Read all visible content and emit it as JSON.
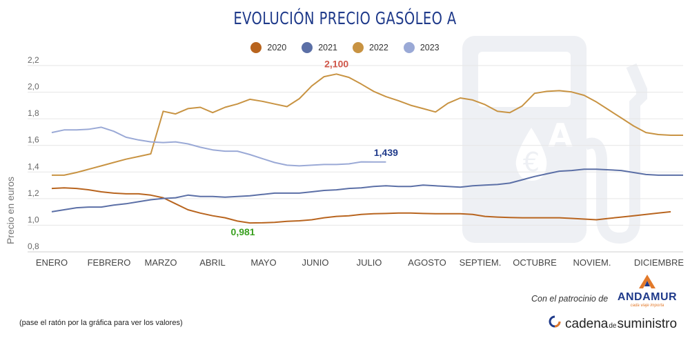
{
  "title": "EVOLUCIÓN PRECIO GASÓLEO A",
  "chart_data": {
    "type": "line",
    "title": "EVOLUCIÓN PRECIO GASÓLEO A",
    "xlabel": "",
    "ylabel": "Precio en euros",
    "ylim": [
      0.8,
      2.2
    ],
    "y_ticks": [
      "0,8",
      "1,0",
      "1,2",
      "1,4",
      "1,6",
      "1,8",
      "2,0",
      "2,2"
    ],
    "months": [
      "ENERO",
      "FEBRERO",
      "MARZO",
      "ABRIL",
      "MAYO",
      "JUNIO",
      "JULIO",
      "AGOSTO",
      "SEPTIEM.",
      "OCTUBRE",
      "NOVIEM.",
      "DICIEMBRE"
    ],
    "x_unit": "semana",
    "grid": true,
    "legend_position": "top-center",
    "series": [
      {
        "name": "2020",
        "color": "#b8641e",
        "x": [
          0,
          1,
          2,
          3,
          4,
          5,
          6,
          7,
          8,
          9,
          10,
          11,
          12,
          13,
          14,
          15,
          16,
          17,
          18,
          19,
          20,
          21,
          22,
          23,
          24,
          25,
          26,
          27,
          28,
          29,
          30,
          31,
          32,
          33,
          34,
          35,
          36,
          37,
          38,
          39,
          40,
          41,
          42,
          43,
          44,
          45,
          46,
          47,
          48,
          49,
          50
        ],
        "values": [
          1.24,
          1.245,
          1.24,
          1.23,
          1.215,
          1.205,
          1.2,
          1.2,
          1.19,
          1.17,
          1.125,
          1.08,
          1.055,
          1.035,
          1.02,
          0.995,
          0.981,
          0.982,
          0.985,
          0.993,
          0.997,
          1.005,
          1.02,
          1.03,
          1.035,
          1.045,
          1.05,
          1.052,
          1.055,
          1.055,
          1.052,
          1.05,
          1.05,
          1.05,
          1.045,
          1.03,
          1.025,
          1.022,
          1.02,
          1.02,
          1.02,
          1.02,
          1.015,
          1.01,
          1.005,
          1.015,
          1.025,
          1.035,
          1.045,
          1.055,
          1.065
        ]
      },
      {
        "name": "2021",
        "color": "#5b6fa6",
        "x": [
          0,
          1,
          2,
          3,
          4,
          5,
          6,
          7,
          8,
          9,
          10,
          11,
          12,
          13,
          14,
          15,
          16,
          17,
          18,
          19,
          20,
          21,
          22,
          23,
          24,
          25,
          26,
          27,
          28,
          29,
          30,
          31,
          32,
          33,
          34,
          35,
          36,
          37,
          38,
          39,
          40,
          41,
          42,
          43,
          44,
          45,
          46,
          47,
          48,
          49,
          50,
          51
        ],
        "values": [
          1.065,
          1.08,
          1.095,
          1.1,
          1.1,
          1.115,
          1.125,
          1.14,
          1.155,
          1.165,
          1.17,
          1.19,
          1.18,
          1.18,
          1.175,
          1.18,
          1.185,
          1.195,
          1.205,
          1.205,
          1.205,
          1.215,
          1.225,
          1.23,
          1.24,
          1.245,
          1.255,
          1.26,
          1.255,
          1.255,
          1.265,
          1.26,
          1.255,
          1.25,
          1.26,
          1.265,
          1.27,
          1.28,
          1.305,
          1.33,
          1.35,
          1.37,
          1.375,
          1.385,
          1.385,
          1.38,
          1.375,
          1.36,
          1.345,
          1.34,
          1.34,
          1.34
        ]
      },
      {
        "name": "2022",
        "color": "#c89342",
        "x": [
          0,
          1,
          2,
          3,
          4,
          5,
          6,
          7,
          8,
          9,
          10,
          11,
          12,
          13,
          14,
          15,
          16,
          17,
          18,
          19,
          20,
          21,
          22,
          23,
          24,
          25,
          26,
          27,
          28,
          29,
          30,
          31,
          32,
          33,
          34,
          35,
          36,
          37,
          38,
          39,
          40,
          41,
          42,
          43,
          44,
          45,
          46,
          47,
          48,
          49,
          50,
          51
        ],
        "values": [
          1.34,
          1.34,
          1.36,
          1.385,
          1.41,
          1.435,
          1.46,
          1.48,
          1.5,
          1.82,
          1.8,
          1.84,
          1.85,
          1.81,
          1.85,
          1.875,
          1.91,
          1.895,
          1.875,
          1.855,
          1.915,
          2.01,
          2.08,
          2.1,
          2.075,
          2.025,
          1.97,
          1.93,
          1.9,
          1.865,
          1.84,
          1.815,
          1.88,
          1.92,
          1.905,
          1.87,
          1.82,
          1.81,
          1.86,
          1.955,
          1.97,
          1.975,
          1.965,
          1.94,
          1.89,
          1.83,
          1.77,
          1.71,
          1.66,
          1.645,
          1.64,
          1.64
        ]
      },
      {
        "name": "2023",
        "color": "#9aa9d6",
        "x": [
          0,
          1,
          2,
          3,
          4,
          5,
          6,
          7,
          8,
          9,
          10,
          11,
          12,
          13,
          14,
          15,
          16,
          17,
          18,
          19,
          20,
          21,
          22,
          23,
          24,
          25,
          26,
          27
        ],
        "values": [
          1.66,
          1.68,
          1.68,
          1.685,
          1.7,
          1.67,
          1.625,
          1.605,
          1.59,
          1.585,
          1.59,
          1.575,
          1.55,
          1.53,
          1.52,
          1.52,
          1.495,
          1.465,
          1.435,
          1.415,
          1.41,
          1.415,
          1.42,
          1.42,
          1.425,
          1.44,
          1.439,
          1.439
        ]
      }
    ],
    "annotations": [
      {
        "text": "2,100",
        "series": "2022",
        "x": 23,
        "y": 2.1,
        "color": "#d0574a"
      },
      {
        "text": "1,439",
        "series": "2023",
        "x": 27,
        "y": 1.439,
        "color": "#1f3a8a"
      },
      {
        "text": "0,981",
        "series": "2020",
        "x": 16,
        "y": 0.981,
        "color": "#3aa020"
      }
    ]
  },
  "footer": {
    "sponsor_text": "Con el patrocinio de",
    "sponsor_name": "ANDAMUR",
    "sponsor_tagline": "cada viaje importa",
    "hint": "(pase el ratón por la gráfica para ver los valores)",
    "brand_part1": "cadena",
    "brand_part2": "de",
    "brand_part3": "suministro"
  },
  "colors": {
    "title": "#1f3a8a",
    "grid": "#e6e6e6",
    "watermark": "#eef0f4"
  }
}
